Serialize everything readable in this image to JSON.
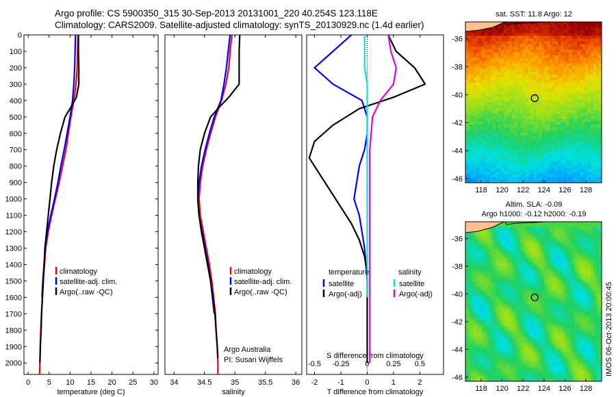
{
  "title_line1": "Argo profile: CS 5900350_315 30-Sep-2013 20131001_220 40.254S 123.118E",
  "title_line2": "Climatology: CARS2009. Satellite-adjusted climatology: synTS_20130929.nc (1.4d earlier)",
  "colors": {
    "climatology": "#ff0000",
    "satellite": "#0000ff",
    "argo": "#000000",
    "s_satellite": "#00e5e5",
    "s_argo": "#e000e0"
  },
  "chart_data": [
    {
      "type": "line",
      "xlabel": "temperature (deg C)",
      "xlim": [
        -1,
        31
      ],
      "ylim": [
        2070,
        0
      ],
      "xticks": [
        0,
        5,
        10,
        15,
        20,
        25,
        30
      ],
      "yticks": [
        0,
        100,
        200,
        300,
        400,
        500,
        600,
        700,
        800,
        900,
        1000,
        1100,
        1200,
        1300,
        1400,
        1500,
        1600,
        1700,
        1800,
        1900,
        2000
      ],
      "legend": [
        "climatology",
        "satellite-adj. clim.",
        "Argo(..raw -QC)"
      ],
      "series": [
        {
          "name": "climatology",
          "color": "#ff0000",
          "points": [
            [
              11.9,
              0
            ],
            [
              11.8,
              100
            ],
            [
              11.7,
              200
            ],
            [
              11.4,
              300
            ],
            [
              10.9,
              400
            ],
            [
              10.2,
              500
            ],
            [
              9.6,
              600
            ],
            [
              9.0,
              700
            ],
            [
              8.2,
              800
            ],
            [
              7.4,
              900
            ],
            [
              6.5,
              1000
            ],
            [
              5.6,
              1100
            ],
            [
              4.8,
              1200
            ],
            [
              4.2,
              1300
            ],
            [
              3.9,
              1400
            ],
            [
              3.6,
              1500
            ],
            [
              3.4,
              1600
            ],
            [
              3.2,
              1700
            ],
            [
              3.0,
              1800
            ],
            [
              2.9,
              1900
            ],
            [
              2.8,
              2000
            ],
            [
              2.7,
              2070
            ]
          ]
        },
        {
          "name": "satellite-adj. clim.",
          "color": "#0000ff",
          "points": [
            [
              11.3,
              0
            ],
            [
              11.2,
              100
            ],
            [
              11.1,
              200
            ],
            [
              10.9,
              300
            ],
            [
              10.6,
              400
            ],
            [
              10.0,
              500
            ],
            [
              9.3,
              600
            ],
            [
              8.6,
              700
            ],
            [
              7.8,
              800
            ],
            [
              7.1,
              900
            ],
            [
              6.3,
              1000
            ],
            [
              5.4,
              1100
            ],
            [
              4.6,
              1200
            ],
            [
              4.1,
              1300
            ],
            [
              3.8,
              1400
            ],
            [
              3.5,
              1500
            ],
            [
              3.3,
              1600
            ]
          ]
        },
        {
          "name": "Argo(..raw -QC)",
          "color": "#000000",
          "points": [
            [
              12.0,
              0
            ],
            [
              12.0,
              100
            ],
            [
              12.1,
              200
            ],
            [
              12.1,
              300
            ],
            [
              11.5,
              380
            ],
            [
              10.0,
              450
            ],
            [
              8.8,
              500
            ],
            [
              7.7,
              600
            ],
            [
              6.8,
              700
            ],
            [
              6.1,
              800
            ],
            [
              5.6,
              900
            ],
            [
              5.2,
              1000
            ],
            [
              4.8,
              1100
            ],
            [
              4.4,
              1200
            ],
            [
              4.0,
              1300
            ],
            [
              3.8,
              1400
            ],
            [
              3.6,
              1500
            ],
            [
              3.4,
              1600
            ],
            [
              3.2,
              1700
            ],
            [
              3.1,
              1800
            ],
            [
              2.9,
              1900
            ],
            [
              2.8,
              2000
            ]
          ]
        }
      ]
    },
    {
      "type": "line",
      "xlabel": "salinity",
      "xlim": [
        33.85,
        36.1
      ],
      "ylim": [
        2070,
        0
      ],
      "xticks": [
        34,
        34.5,
        35,
        35.5,
        36
      ],
      "xtick_labels": [
        "34",
        "34.5",
        "35",
        "35.5",
        "36"
      ],
      "legend": [
        "climatology",
        "satellite-adj. clim.",
        "Argo(..raw -QC)"
      ],
      "annotation": [
        "Argo Australia",
        "PI: Susan Wijffels"
      ],
      "series": [
        {
          "name": "climatology",
          "color": "#ff0000",
          "points": [
            [
              34.95,
              0
            ],
            [
              34.92,
              100
            ],
            [
              34.9,
              200
            ],
            [
              34.85,
              300
            ],
            [
              34.78,
              400
            ],
            [
              34.68,
              500
            ],
            [
              34.6,
              600
            ],
            [
              34.53,
              700
            ],
            [
              34.47,
              800
            ],
            [
              34.43,
              900
            ],
            [
              34.41,
              1000
            ],
            [
              34.43,
              1100
            ],
            [
              34.48,
              1200
            ],
            [
              34.53,
              1300
            ],
            [
              34.58,
              1400
            ],
            [
              34.62,
              1500
            ],
            [
              34.65,
              1600
            ],
            [
              34.68,
              1700
            ],
            [
              34.69,
              1800
            ],
            [
              34.71,
              1900
            ],
            [
              34.72,
              2000
            ],
            [
              34.72,
              2070
            ]
          ]
        },
        {
          "name": "satellite-adj. clim.",
          "color": "#0000ff",
          "points": [
            [
              34.92,
              0
            ],
            [
              34.89,
              100
            ],
            [
              34.86,
              200
            ],
            [
              34.82,
              300
            ],
            [
              34.77,
              400
            ],
            [
              34.66,
              500
            ],
            [
              34.58,
              600
            ],
            [
              34.51,
              700
            ],
            [
              34.45,
              800
            ],
            [
              34.41,
              900
            ],
            [
              34.39,
              1000
            ],
            [
              34.41,
              1100
            ],
            [
              34.46,
              1200
            ],
            [
              34.51,
              1300
            ],
            [
              34.56,
              1400
            ],
            [
              34.6,
              1500
            ],
            [
              34.63,
              1600
            ],
            [
              34.66,
              1700
            ]
          ]
        },
        {
          "name": "Argo(..raw -QC)",
          "color": "#000000",
          "points": [
            [
              35.08,
              0
            ],
            [
              35.07,
              100
            ],
            [
              35.07,
              200
            ],
            [
              35.07,
              300
            ],
            [
              34.9,
              380
            ],
            [
              34.72,
              450
            ],
            [
              34.6,
              500
            ],
            [
              34.5,
              600
            ],
            [
              34.43,
              700
            ],
            [
              34.4,
              800
            ],
            [
              34.39,
              900
            ],
            [
              34.39,
              1000
            ],
            [
              34.41,
              1100
            ],
            [
              34.45,
              1200
            ],
            [
              34.5,
              1300
            ],
            [
              34.55,
              1400
            ],
            [
              34.6,
              1500
            ],
            [
              34.64,
              1600
            ],
            [
              34.67,
              1700
            ],
            [
              34.69,
              1800
            ],
            [
              34.71,
              1900
            ],
            [
              34.72,
              1970
            ]
          ]
        }
      ]
    },
    {
      "type": "line",
      "xlabel": "T difference from climatology",
      "top_xlabel": "S difference from climatology",
      "xlim": [
        -2.3,
        2.9
      ],
      "ylim": [
        2070,
        0
      ],
      "xticks": [
        -2,
        -1,
        0,
        1,
        2
      ],
      "top_xticks": [
        -0.5,
        -0.25,
        0,
        0.25,
        0.5
      ],
      "top_xtick_labels": [
        "-0.5",
        "-0.25",
        "0",
        "0.25",
        "0.5"
      ],
      "legend_temperature_title": "temperature",
      "legend_salinity_title": "salinity",
      "legend": [
        "satellite",
        "Argo(-adj)",
        "satellite",
        "Argo(-adj)"
      ],
      "series": [
        {
          "name": "T satellite",
          "color": "#0000ff",
          "points": [
            [
              -0.6,
              0
            ],
            [
              -1.3,
              100
            ],
            [
              -2.0,
              200
            ],
            [
              -1.3,
              300
            ],
            [
              -0.2,
              400
            ],
            [
              0.0,
              500
            ],
            [
              0.0,
              600
            ],
            [
              -0.1,
              700
            ],
            [
              -0.3,
              800
            ],
            [
              -0.4,
              900
            ],
            [
              -0.5,
              1000
            ],
            [
              -0.3,
              1100
            ],
            [
              -0.2,
              1200
            ],
            [
              -0.1,
              1300
            ],
            [
              -0.05,
              1400
            ],
            [
              0.0,
              1500
            ],
            [
              0.0,
              1600
            ]
          ]
        },
        {
          "name": "T Argo(-adj)",
          "color": "#000000",
          "points": [
            [
              0.8,
              0
            ],
            [
              1.1,
              100
            ],
            [
              1.8,
              200
            ],
            [
              2.2,
              300
            ],
            [
              1.0,
              380
            ],
            [
              -0.3,
              450
            ],
            [
              -1.3,
              550
            ],
            [
              -2.0,
              650
            ],
            [
              -2.2,
              750
            ],
            [
              -1.8,
              850
            ],
            [
              -1.4,
              950
            ],
            [
              -1.0,
              1050
            ],
            [
              -0.6,
              1150
            ],
            [
              -0.3,
              1250
            ],
            [
              -0.1,
              1350
            ],
            [
              0.0,
              1450
            ],
            [
              0.0,
              1600
            ],
            [
              0.0,
              1800
            ],
            [
              0.0,
              2000
            ]
          ]
        },
        {
          "name": "S satellite",
          "color": "#00e5e5",
          "points": [
            [
              -0.1,
              0
            ],
            [
              -0.1,
              100
            ],
            [
              -0.1,
              200
            ],
            [
              0.0,
              300
            ],
            [
              0.0,
              500
            ],
            [
              0.0,
              1000
            ],
            [
              0.0,
              1500
            ],
            [
              0.0,
              1600
            ]
          ]
        },
        {
          "name": "S Argo(-adj)",
          "color": "#e000e0",
          "points": [
            [
              0.8,
              0
            ],
            [
              0.9,
              100
            ],
            [
              1.1,
              200
            ],
            [
              1.0,
              300
            ],
            [
              0.5,
              400
            ],
            [
              0.2,
              500
            ],
            [
              0.1,
              700
            ],
            [
              0.1,
              900
            ],
            [
              0.1,
              1100
            ],
            [
              0.1,
              1300
            ],
            [
              0.1,
              1500
            ],
            [
              0.1,
              1700
            ],
            [
              0.1,
              1900
            ],
            [
              0.1,
              2000
            ]
          ]
        }
      ]
    },
    {
      "type": "heatmap",
      "title": "sat. SST: 11.8 Argo: 12",
      "xlim": [
        116.5,
        129.5
      ],
      "ylim": [
        -46.3,
        -34.8
      ],
      "xticks": [
        118,
        120,
        122,
        124,
        126,
        128
      ],
      "yticks": [
        -46,
        -44,
        -42,
        -40,
        -38,
        -36
      ],
      "argo_position": [
        123.118,
        -40.254
      ]
    },
    {
      "type": "heatmap",
      "title_line1": "Altim. SLA: -0.09",
      "title_line2": "Argo h1000: -0.12 h2000: -0.19",
      "xlim": [
        116.5,
        129.5
      ],
      "ylim": [
        -46.3,
        -34.8
      ],
      "xticks": [
        118,
        120,
        122,
        124,
        126,
        128
      ],
      "yticks": [
        -46,
        -44,
        -42,
        -40,
        -38,
        -36
      ],
      "argo_position": [
        123.118,
        -40.254
      ],
      "side_label": "IMOS 06-Oct-2013 20:00:45"
    }
  ]
}
